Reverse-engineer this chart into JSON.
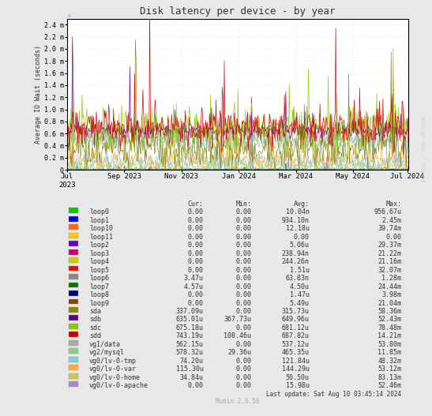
{
  "title": "Disk latency per device - by year",
  "ylabel": "Average IO Wait (seconds)",
  "watermark": "RRDTOOL / TOBI OETIKER",
  "munin_version": "Munin 2.0.56",
  "last_update": "Last update: Sat Aug 10 03:45:14 2024",
  "background_color": "#e8e8e8",
  "plot_bg_color": "#ffffff",
  "grid_color": "#ffcccc",
  "ylim": [
    0,
    0.0025
  ],
  "yticks": [
    0.0,
    0.0002,
    0.0004,
    0.0006,
    0.0008,
    0.001,
    0.0012,
    0.0014,
    0.0016,
    0.0018,
    0.002,
    0.0022,
    0.0024
  ],
  "ytick_labels": [
    "0",
    "0.2 m",
    "0.4 m",
    "0.6 m",
    "0.8 m",
    "1.0 m",
    "1.2 m",
    "1.4 m",
    "1.6 m",
    "1.8 m",
    "2.0 m",
    "2.2 m",
    "2.4 m"
  ],
  "legend_entries": [
    {
      "label": "loop0",
      "color": "#00cc00"
    },
    {
      "label": "loop1",
      "color": "#0000ff"
    },
    {
      "label": "loop10",
      "color": "#ff6600"
    },
    {
      "label": "loop11",
      "color": "#ffcc00"
    },
    {
      "label": "loop2",
      "color": "#6600cc"
    },
    {
      "label": "loop3",
      "color": "#cc0066"
    },
    {
      "label": "loop4",
      "color": "#cccc00"
    },
    {
      "label": "loop5",
      "color": "#ff0000"
    },
    {
      "label": "loop6",
      "color": "#888888"
    },
    {
      "label": "loop7",
      "color": "#007700"
    },
    {
      "label": "loop8",
      "color": "#000077"
    },
    {
      "label": "loop9",
      "color": "#884400"
    },
    {
      "label": "sda",
      "color": "#888800"
    },
    {
      "label": "sdb",
      "color": "#660088"
    },
    {
      "label": "sdc",
      "color": "#88cc00"
    },
    {
      "label": "sdd",
      "color": "#cc0000"
    },
    {
      "label": "vg1/data",
      "color": "#aaaaaa"
    },
    {
      "label": "vg2/mysql",
      "color": "#88cc88"
    },
    {
      "label": "vg0/lv-0-tmp",
      "color": "#88cccc"
    },
    {
      "label": "vg0/lv-0-var",
      "color": "#ffaa44"
    },
    {
      "label": "vg0/lv-0-home",
      "color": "#cccc44"
    },
    {
      "label": "vg0/lv-0-apache",
      "color": "#aa88cc"
    }
  ],
  "table_headers": [
    "Cur:",
    "Min:",
    "Avg:",
    "Max:"
  ],
  "table_data": [
    [
      "loop0",
      "0.00",
      "0.00",
      "10.04n",
      "956.67u"
    ],
    [
      "loop1",
      "0.00",
      "0.00",
      "934.10n",
      "2.45m"
    ],
    [
      "loop10",
      "0.00",
      "0.00",
      "12.18u",
      "39.74m"
    ],
    [
      "loop11",
      "0.00",
      "0.00",
      "0.00",
      "0.00"
    ],
    [
      "loop2",
      "0.00",
      "0.00",
      "5.06u",
      "29.37m"
    ],
    [
      "loop3",
      "0.00",
      "0.00",
      "238.94n",
      "21.22m"
    ],
    [
      "loop4",
      "0.00",
      "0.00",
      "244.26n",
      "21.16m"
    ],
    [
      "loop5",
      "0.00",
      "0.00",
      "1.51u",
      "32.07m"
    ],
    [
      "loop6",
      "3.47u",
      "0.00",
      "63.83n",
      "1.28m"
    ],
    [
      "loop7",
      "4.57u",
      "0.00",
      "4.50u",
      "24.44m"
    ],
    [
      "loop8",
      "0.00",
      "0.00",
      "1.47u",
      "3.98m"
    ],
    [
      "loop9",
      "0.00",
      "0.00",
      "5.49u",
      "21.04m"
    ],
    [
      "sda",
      "337.09u",
      "0.00",
      "315.73u",
      "58.36m"
    ],
    [
      "sdb",
      "635.01u",
      "367.73u",
      "649.96u",
      "52.43m"
    ],
    [
      "sdc",
      "675.18u",
      "0.00",
      "681.12u",
      "78.48m"
    ],
    [
      "sdd",
      "743.19u",
      "108.46u",
      "687.82u",
      "14.21m"
    ],
    [
      "vg1/data",
      "562.15u",
      "0.00",
      "537.12u",
      "53.80m"
    ],
    [
      "vg2/mysql",
      "578.32u",
      "29.36u",
      "465.35u",
      "11.85m"
    ],
    [
      "vg0/lv-0-tmp",
      "74.20u",
      "0.00",
      "121.84u",
      "48.32m"
    ],
    [
      "vg0/lv-0-var",
      "115.30u",
      "0.00",
      "144.29u",
      "53.12m"
    ],
    [
      "vg0/lv-0-home",
      "34.84u",
      "0.00",
      "50.50u",
      "83.13m"
    ],
    [
      "vg0/lv-0-apache",
      "0.00",
      "0.00",
      "15.98u",
      "52.46m"
    ]
  ]
}
